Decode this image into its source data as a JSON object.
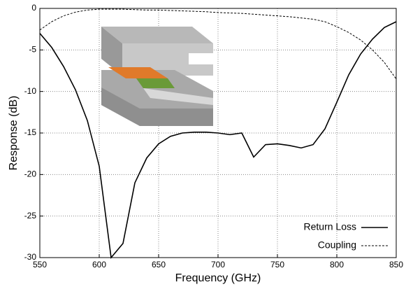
{
  "chart_data": {
    "type": "line",
    "xlabel": "Frequency (GHz)",
    "ylabel": "Response (dB)",
    "x": [
      550,
      560,
      570,
      580,
      590,
      600,
      610,
      620,
      630,
      640,
      650,
      660,
      670,
      680,
      690,
      700,
      710,
      720,
      730,
      740,
      750,
      760,
      770,
      780,
      790,
      800,
      810,
      820,
      830,
      840,
      850
    ],
    "series": [
      {
        "name": "Return Loss",
        "color": "#000000",
        "style": "solid",
        "values": [
          -3,
          -4.7,
          -7,
          -9.8,
          -13.5,
          -19,
          -30,
          -28.3,
          -21,
          -18,
          -16.3,
          -15.4,
          -15,
          -14.9,
          -14.9,
          -15,
          -15.2,
          -15,
          -17.9,
          -16.4,
          -16.3,
          -16.5,
          -16.8,
          -16.4,
          -14.5,
          -11.3,
          -8,
          -5.5,
          -3.7,
          -2.3,
          -1.6
        ]
      },
      {
        "name": "Coupling",
        "color": "#000000",
        "style": "dashed",
        "values": [
          -2.6,
          -1.6,
          -0.9,
          -0.45,
          -0.2,
          -0.1,
          -0.1,
          -0.1,
          -0.15,
          -0.2,
          -0.2,
          -0.25,
          -0.3,
          -0.35,
          -0.4,
          -0.5,
          -0.55,
          -0.6,
          -0.7,
          -0.8,
          -0.9,
          -1.0,
          -1.15,
          -1.3,
          -1.6,
          -2.2,
          -2.9,
          -3.8,
          -5,
          -6.5,
          -8.5
        ]
      }
    ],
    "xlim": [
      550,
      850
    ],
    "xticks": [
      550,
      600,
      650,
      700,
      750,
      800,
      850
    ],
    "ylim": [
      -30,
      0
    ],
    "yticks": [
      0,
      -5,
      -10,
      -15,
      -20,
      -25,
      -30
    ],
    "grid": true,
    "legend": "lower right"
  }
}
